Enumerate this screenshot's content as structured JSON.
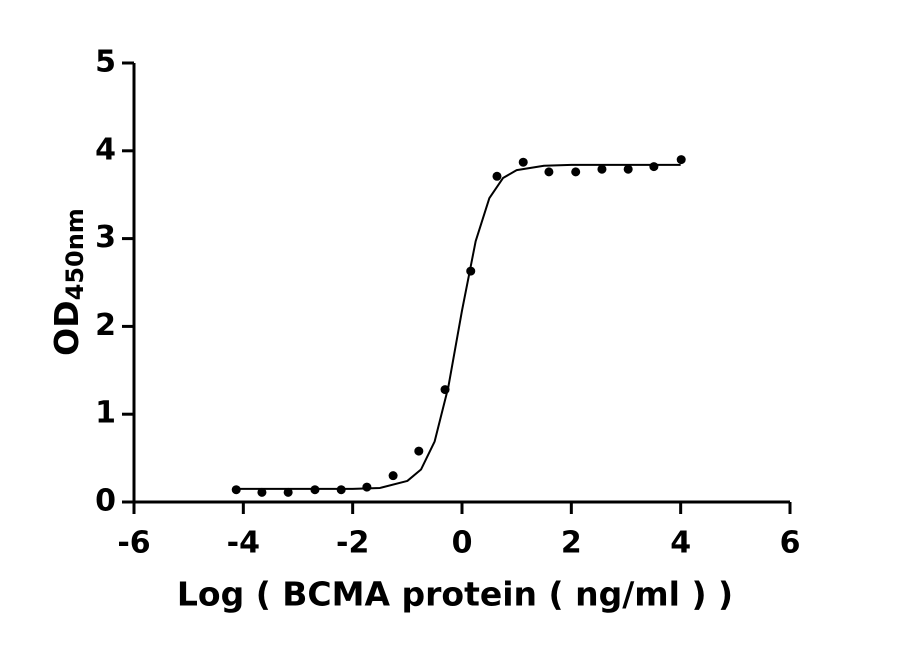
{
  "chart_data": {
    "type": "scatter",
    "xlabel": "Log ( BCMA protein ( ng/ml )    )",
    "ylabel": "OD",
    "ylabel_sub": "450nm",
    "xlim": [
      -6,
      6
    ],
    "xticks": [
      -6,
      -4,
      -2,
      0,
      2,
      4,
      6
    ],
    "ylim": [
      0,
      5
    ],
    "yticks": [
      0,
      1,
      2,
      3,
      4,
      5
    ],
    "color": "#000000",
    "series": [
      {
        "type": "scatter",
        "x": [
          -4.13,
          -3.66,
          -3.18,
          -2.69,
          -2.21,
          -1.74,
          -1.26,
          -0.79,
          -0.31,
          0.16,
          0.64,
          1.12,
          1.59,
          2.08,
          2.56,
          3.04,
          3.51,
          4.01
        ],
        "values": [
          0.14,
          0.11,
          0.11,
          0.14,
          0.14,
          0.17,
          0.3,
          0.58,
          1.28,
          2.63,
          3.71,
          3.87,
          3.76,
          3.76,
          3.79,
          3.79,
          3.82,
          3.9
        ]
      },
      {
        "type": "line",
        "x": [
          -4.1,
          -3,
          -2,
          -1.5,
          -1,
          -0.75,
          -0.5,
          -0.25,
          0,
          0.25,
          0.5,
          0.75,
          1,
          1.5,
          2,
          3,
          4
        ],
        "values": [
          0.15,
          0.15,
          0.15,
          0.16,
          0.24,
          0.37,
          0.69,
          1.31,
          2.18,
          2.97,
          3.46,
          3.69,
          3.78,
          3.83,
          3.84,
          3.84,
          3.84
        ]
      }
    ]
  }
}
